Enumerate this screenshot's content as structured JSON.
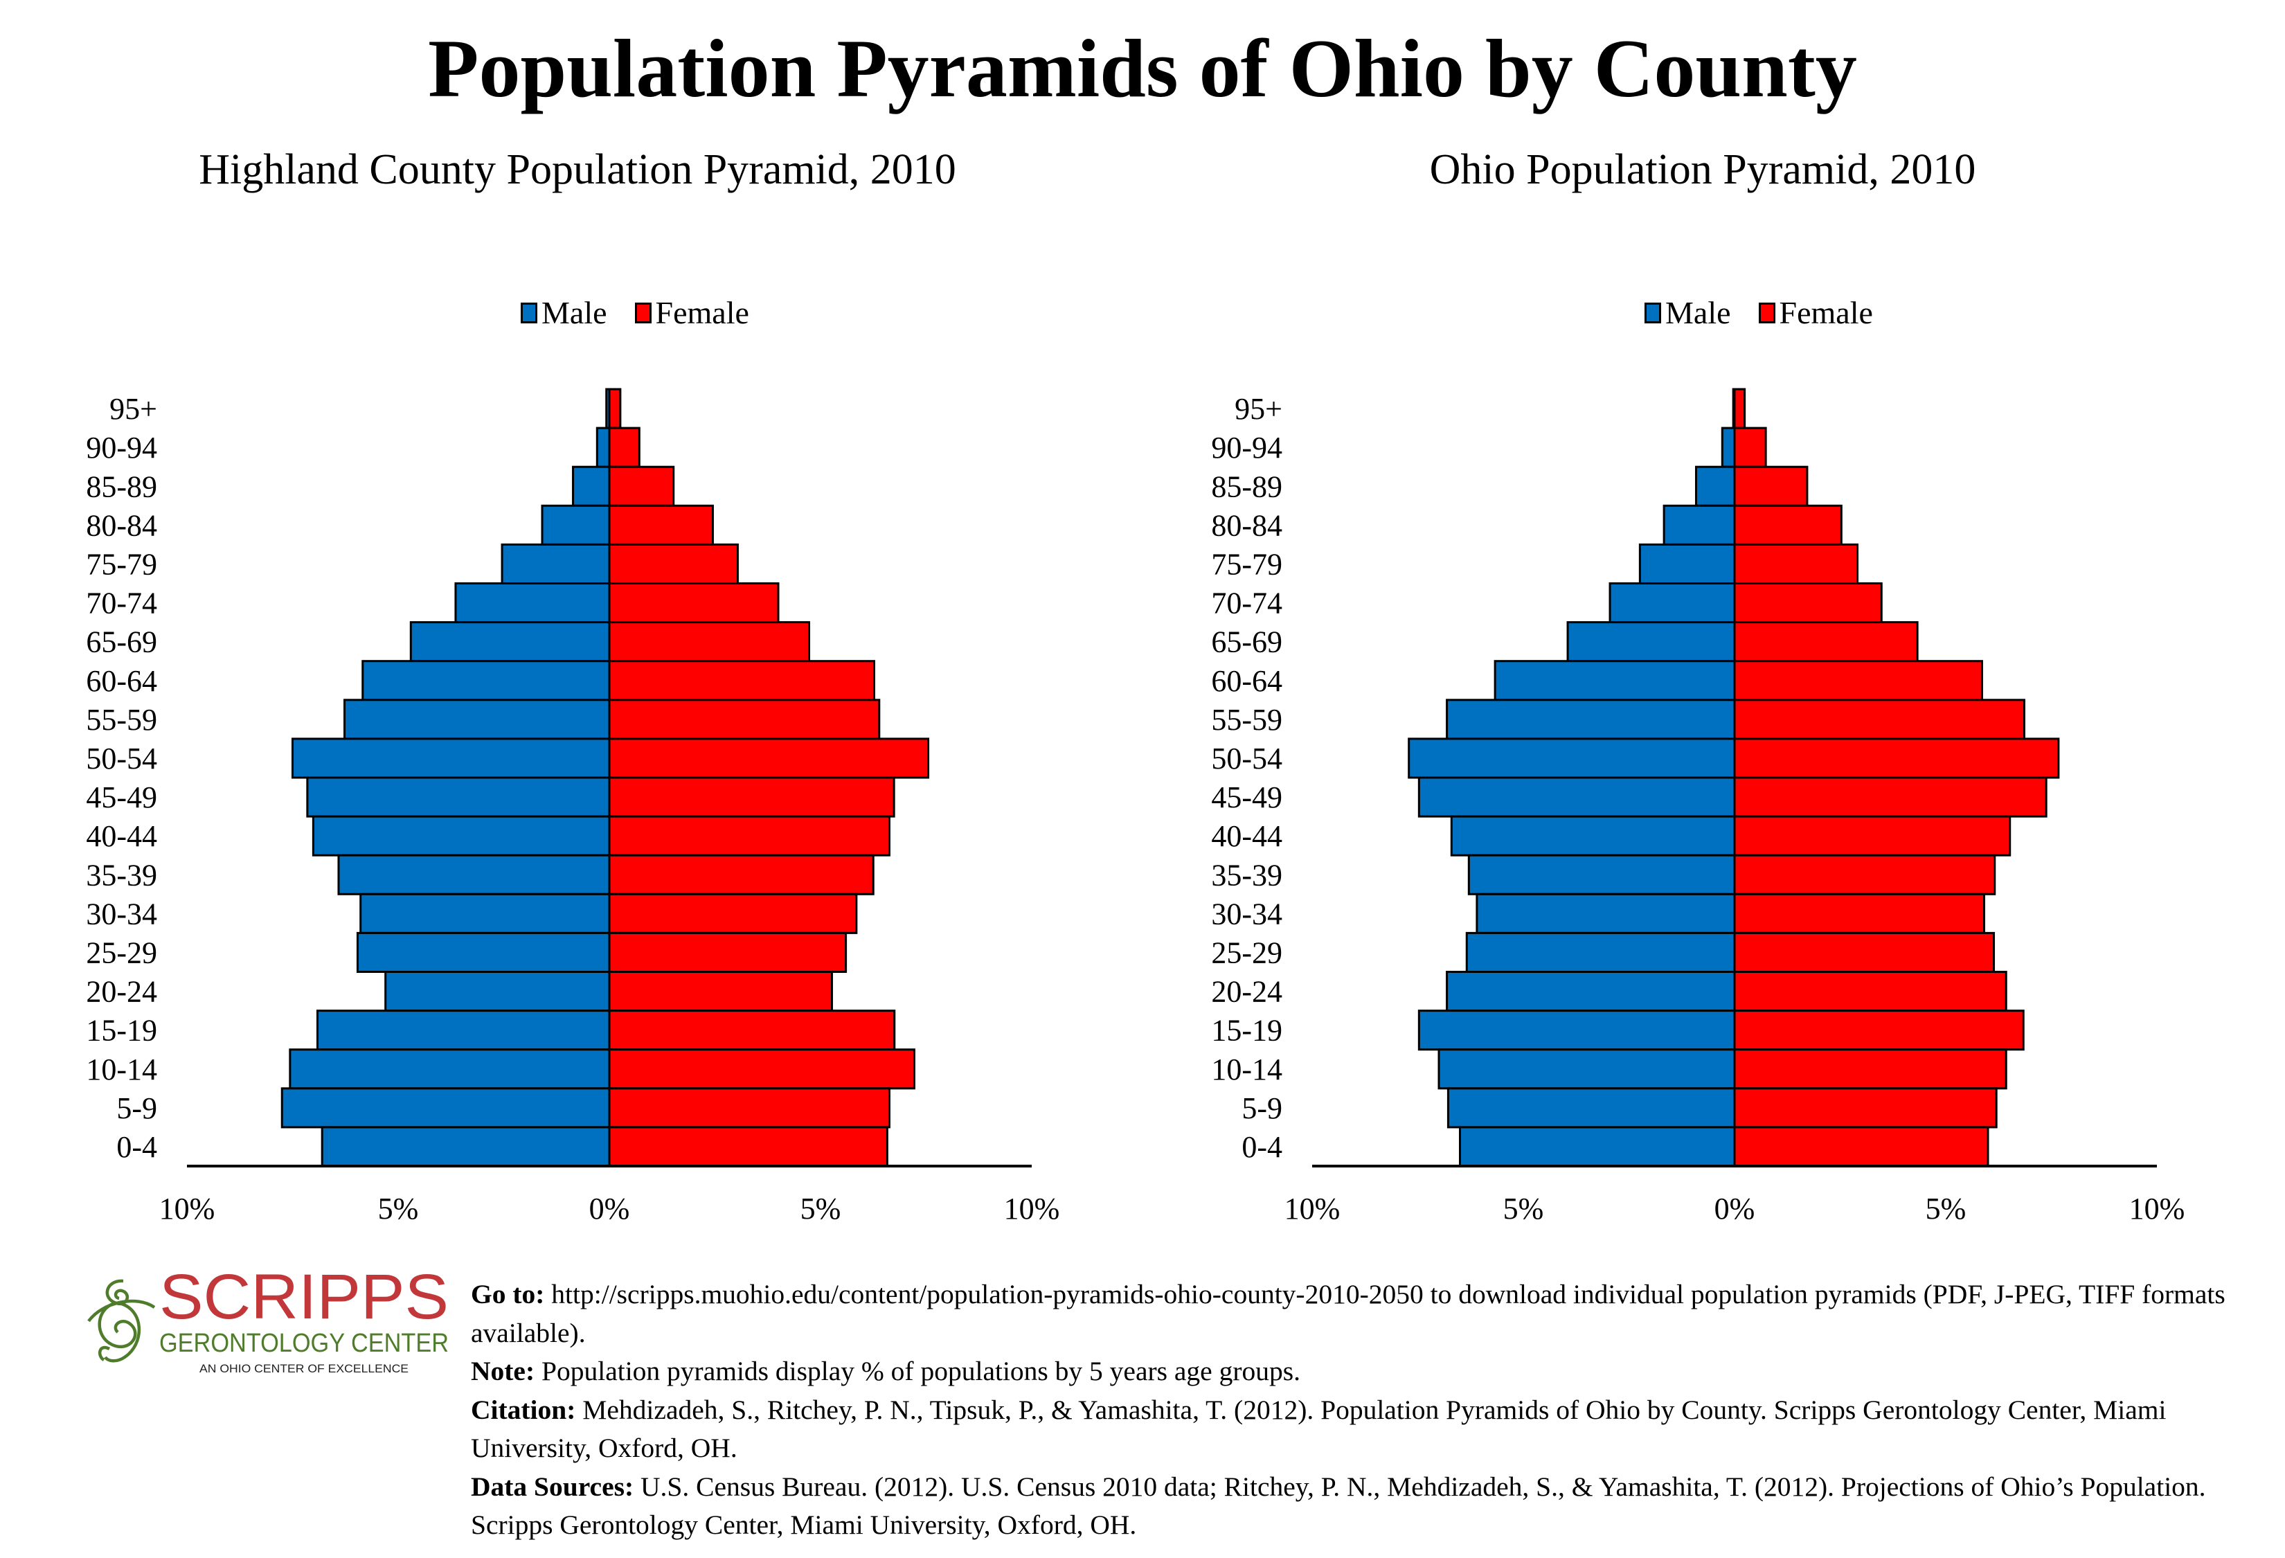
{
  "title": "Population Pyramids of Ohio by County",
  "colors": {
    "male": "#0070C0",
    "female": "#FF0000",
    "logo_red": "#C1373A",
    "logo_green": "#4E7C2B"
  },
  "legend": {
    "male": "Male",
    "female": "Female"
  },
  "chart_data": [
    {
      "type": "bar",
      "orientation": "horizontal-pyramid",
      "title": "Highland County Population Pyramid, 2010",
      "categories": [
        "95+",
        "90-94",
        "85-89",
        "80-84",
        "75-79",
        "70-74",
        "65-69",
        "60-64",
        "55-59",
        "50-54",
        "45-49",
        "40-44",
        "35-39",
        "30-34",
        "25-29",
        "20-24",
        "15-19",
        "10-14",
        "5-9",
        "0-4"
      ],
      "series": [
        {
          "name": "Male",
          "values": [
            0.07,
            0.29,
            0.86,
            1.59,
            2.54,
            3.64,
            4.7,
            5.84,
            6.27,
            7.5,
            7.15,
            7.01,
            6.41,
            5.89,
            5.96,
            5.3,
            6.91,
            7.56,
            7.75,
            6.8
          ]
        },
        {
          "name": "Female",
          "values": [
            0.26,
            0.71,
            1.52,
            2.45,
            3.04,
            4.0,
            4.73,
            6.27,
            6.39,
            7.55,
            6.74,
            6.63,
            6.25,
            5.85,
            5.6,
            5.27,
            6.75,
            7.22,
            6.63,
            6.58
          ]
        }
      ],
      "xlim": [
        -10,
        10
      ],
      "xticks": [
        "10%",
        "5%",
        "0%",
        "5%",
        "10%"
      ],
      "xlabel": "",
      "ylabel": "",
      "legend": "top-center",
      "grid": false
    },
    {
      "type": "bar",
      "orientation": "horizontal-pyramid",
      "title": "Ohio Population Pyramid, 2010",
      "categories": [
        "95+",
        "90-94",
        "85-89",
        "80-84",
        "75-79",
        "70-74",
        "65-69",
        "60-64",
        "55-59",
        "50-54",
        "45-49",
        "40-44",
        "35-39",
        "30-34",
        "25-29",
        "20-24",
        "15-19",
        "10-14",
        "5-9",
        "0-4"
      ],
      "series": [
        {
          "name": "Male",
          "values": [
            0.03,
            0.29,
            0.91,
            1.67,
            2.24,
            2.95,
            3.95,
            5.67,
            6.81,
            7.71,
            7.47,
            6.7,
            6.29,
            6.1,
            6.34,
            6.81,
            7.47,
            7.0,
            6.78,
            6.5
          ]
        },
        {
          "name": "Female",
          "values": [
            0.24,
            0.74,
            1.72,
            2.53,
            2.91,
            3.48,
            4.33,
            5.86,
            6.86,
            7.67,
            7.38,
            6.52,
            6.16,
            5.91,
            6.14,
            6.43,
            6.84,
            6.43,
            6.2,
            6.0
          ]
        }
      ],
      "xlim": [
        -10,
        10
      ],
      "xticks": [
        "10%",
        "5%",
        "0%",
        "5%",
        "10%"
      ],
      "xlabel": "",
      "ylabel": "",
      "legend": "top-center",
      "grid": false
    }
  ],
  "logo": {
    "name": "SCRIPPS",
    "subtitle": "GERONTOLOGY CENTER",
    "tagline": "AN OHIO CENTER OF EXCELLENCE"
  },
  "footer": {
    "goto_label": "Go to:",
    "goto_text": " http://scripps.muohio.edu/content/population-pyramids-ohio-county-2010-2050 to download individual population pyramids (PDF, J-PEG, TIFF formats available).",
    "note_label": "Note:",
    "note_text": " Population pyramids display % of populations by 5 years age groups.",
    "citation_label": "Citation:",
    "citation_text": " Mehdizadeh, S., Ritchey, P. N., Tipsuk, P., & Yamashita, T. (2012). Population Pyramids of Ohio by County. Scripps Gerontology Center, Miami University, Oxford, OH.",
    "sources_label": "Data Sources:",
    "sources_text": " U.S. Census Bureau. (2012). U.S. Census 2010 data; Ritchey, P. N., Mehdizadeh, S., & Yamashita, T. (2012). Projections of Ohio’s Population. Scripps Gerontology Center, Miami University, Oxford, OH."
  }
}
